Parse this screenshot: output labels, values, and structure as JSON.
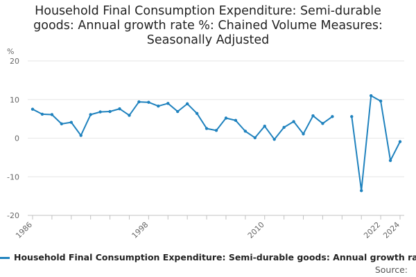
{
  "title_lines": [
    "Household Final Consumption Expenditure: Semi-durable",
    "goods: Annual growth rate %: Chained Volume Measures:",
    "Seasonally Adjusted"
  ],
  "legend_label": "Household Final Consumption Expenditure: Semi-durable goods: Annual growth rate %: Chained Volume Measures: Seasonally Adjusted",
  "source_label": "Source:",
  "colors": {
    "line": "#1f82be",
    "grid": "#e6e6e6",
    "axis": "#c0c0c0"
  },
  "chart_data": {
    "type": "line",
    "title": "Household Final Consumption Expenditure: Semi-durable goods: Annual growth rate %: Chained Volume Measures: Seasonally Adjusted",
    "ylabel": "%",
    "xlabel": "",
    "ylim": [
      -20,
      20
    ],
    "yticks": [
      20,
      10,
      0,
      -10,
      -20
    ],
    "xlim": [
      1986,
      2024
    ],
    "xticks": [
      1986,
      1998,
      2010,
      2022,
      2024
    ],
    "xminor": [
      1986,
      1988,
      1990,
      1992,
      1994,
      1996,
      1998,
      2000,
      2002,
      2004,
      2006,
      2008,
      2010,
      2012,
      2014,
      2016,
      2018,
      2020,
      2022,
      2024
    ],
    "grid": true,
    "series": [
      {
        "name": "Household Final Consumption Expenditure: Semi-durable goods: Annual growth rate %: Chained Volume Measures: Seasonally Adjusted",
        "x": [
          1986,
          1987,
          1988,
          1989,
          1990,
          1991,
          1992,
          1993,
          1994,
          1995,
          1996,
          1997,
          1998,
          1999,
          2000,
          2001,
          2002,
          2003,
          2004,
          2005,
          2006,
          2007,
          2008,
          2009,
          2010,
          2011,
          2012,
          2013,
          2014,
          2015,
          2016,
          2017,
          2018,
          2019,
          2020,
          2021,
          2022,
          2023,
          2024
        ],
        "y": [
          7.5,
          6.2,
          6.1,
          3.7,
          4.1,
          0.7,
          6.1,
          6.8,
          6.9,
          7.6,
          5.9,
          9.4,
          9.3,
          8.3,
          9.0,
          6.9,
          8.9,
          6.4,
          2.5,
          2.0,
          5.2,
          4.6,
          1.8,
          0.1,
          3.1,
          -0.3,
          2.8,
          4.3,
          1.1,
          5.8,
          3.8,
          5.6,
          null,
          5.6,
          -13.6,
          11.0,
          9.6,
          -5.8,
          -0.9
        ]
      }
    ]
  }
}
